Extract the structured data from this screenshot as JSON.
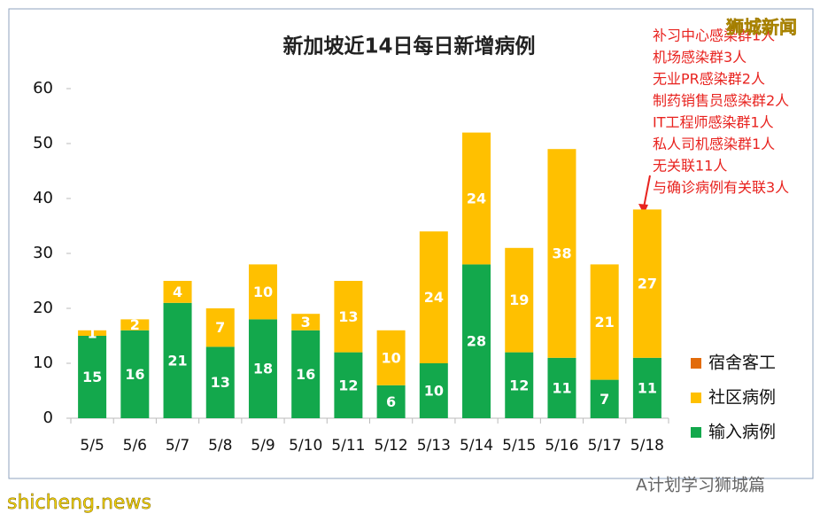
{
  "chart_data": {
    "type": "stacked_bar",
    "title": "新加坡近14日每日新增病例",
    "categories": [
      "5/5",
      "5/6",
      "5/7",
      "5/8",
      "5/9",
      "5/10",
      "5/11",
      "5/12",
      "5/13",
      "5/14",
      "5/15",
      "5/16",
      "5/17",
      "5/18"
    ],
    "series": [
      {
        "name": "输入病例",
        "color": "#13a84c",
        "values": [
          15,
          16,
          21,
          13,
          18,
          16,
          12,
          6,
          10,
          28,
          12,
          11,
          7,
          11
        ]
      },
      {
        "name": "社区病例",
        "color": "#ffc000",
        "values": [
          1,
          2,
          4,
          7,
          10,
          3,
          13,
          10,
          24,
          24,
          19,
          38,
          21,
          27
        ]
      },
      {
        "name": "宿舍客工",
        "color": "#e26b0a",
        "values": [
          0,
          0,
          0,
          0,
          0,
          0,
          0,
          0,
          0,
          0,
          0,
          0,
          0,
          0
        ]
      }
    ],
    "ylim": [
      0,
      60
    ],
    "yticks": [
      0,
      10,
      20,
      30,
      40,
      50,
      60
    ],
    "grid": false,
    "legend": "right",
    "annotations": [
      "补习中心感染群1人",
      "机场感染群3人",
      "无业PR感染群2人",
      "制药销售员感染群2人",
      "IT工程师感染群1人",
      "私人司机感染群1人",
      "无关联11人",
      "与确诊病例有关联3人"
    ]
  },
  "watermarks": [
    "狮城新闻",
    "shicheng.news",
    "A计划学习狮城篇"
  ]
}
